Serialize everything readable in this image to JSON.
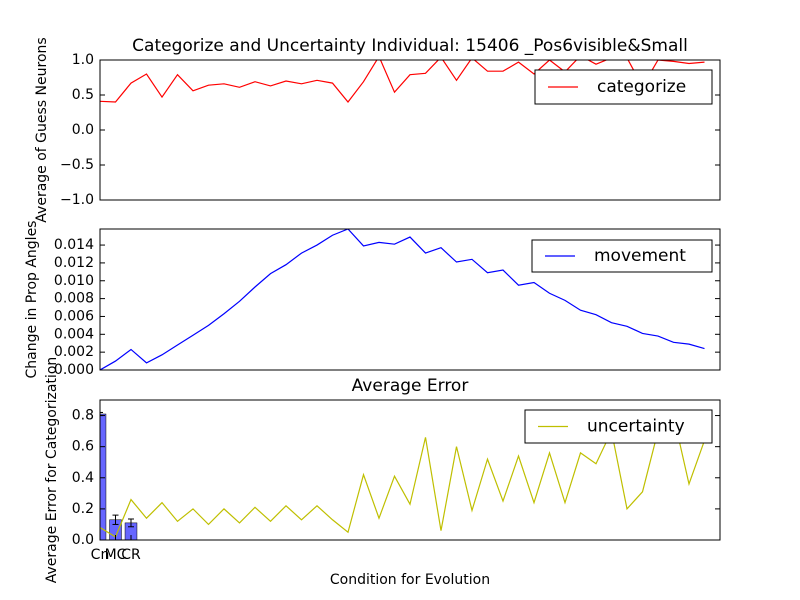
{
  "chart_data": [
    {
      "type": "line",
      "title": "Categorize and Uncertainty Individual: 15406 _Pos6visible&Small",
      "y_label": "Average of Guess Neurons",
      "xlim": [
        0,
        40
      ],
      "ylim": [
        -1,
        1
      ],
      "yticks": [
        {
          "value": -1,
          "label": "−1.0"
        },
        {
          "value": -0.5,
          "label": "−0.5"
        },
        {
          "value": 0,
          "label": "0.0"
        },
        {
          "value": 0.5,
          "label": "0.5"
        },
        {
          "value": 1,
          "label": "1.0"
        }
      ],
      "legend": "upper right",
      "series": [
        {
          "name": "categorize",
          "color": "#ff0000",
          "x": [
            0,
            1,
            2,
            3,
            4,
            5,
            6,
            7,
            8,
            9,
            10,
            11,
            12,
            13,
            14,
            15,
            16,
            17,
            18,
            19,
            20,
            21,
            22,
            23,
            24,
            25,
            26,
            27,
            28,
            29,
            30,
            31,
            32,
            33,
            34,
            35,
            36,
            37,
            38,
            39
          ],
          "values": [
            0.41,
            0.4,
            0.67,
            0.8,
            0.47,
            0.79,
            0.56,
            0.64,
            0.66,
            0.61,
            0.69,
            0.63,
            0.7,
            0.66,
            0.71,
            0.67,
            0.4,
            0.69,
            1.05,
            0.54,
            0.79,
            0.81,
            1.04,
            0.71,
            1.03,
            0.84,
            0.84,
            0.97,
            0.8,
            1.0,
            0.83,
            1.06,
            0.94,
            1.03,
            1.03,
            0.62,
            1.0,
            0.98,
            0.95,
            0.97
          ]
        }
      ]
    },
    {
      "type": "line",
      "y_label": "Change in Prop Angles",
      "xlim": [
        0,
        40
      ],
      "ylim": [
        0,
        0.0158
      ],
      "yticks": [
        {
          "value": 0,
          "label": "0.000"
        },
        {
          "value": 0.002,
          "label": "0.002"
        },
        {
          "value": 0.004,
          "label": "0.004"
        },
        {
          "value": 0.006,
          "label": "0.006"
        },
        {
          "value": 0.008,
          "label": "0.008"
        },
        {
          "value": 0.01,
          "label": "0.010"
        },
        {
          "value": 0.012,
          "label": "0.012"
        },
        {
          "value": 0.014,
          "label": "0.014"
        }
      ],
      "legend": "upper right",
      "series": [
        {
          "name": "movement",
          "color": "#0000ff",
          "x": [
            0,
            1,
            2,
            3,
            4,
            5,
            6,
            7,
            8,
            9,
            10,
            11,
            12,
            13,
            14,
            15,
            16,
            17,
            18,
            19,
            20,
            21,
            22,
            23,
            24,
            25,
            26,
            27,
            28,
            29,
            30,
            31,
            32,
            33,
            34,
            35,
            36,
            37,
            38,
            39
          ],
          "values": [
            0,
            0.001,
            0.0023,
            0.0008,
            0.0017,
            0.0028,
            0.0039,
            0.005,
            0.0063,
            0.0077,
            0.0093,
            0.0108,
            0.0118,
            0.0131,
            0.014,
            0.0151,
            0.0158,
            0.0139,
            0.0143,
            0.0141,
            0.0149,
            0.0131,
            0.0137,
            0.0121,
            0.0124,
            0.0109,
            0.0112,
            0.0095,
            0.0098,
            0.0086,
            0.0078,
            0.0067,
            0.0062,
            0.0053,
            0.0049,
            0.0041,
            0.0038,
            0.0031,
            0.0029,
            0.0024
          ]
        }
      ]
    },
    {
      "type": "bar-line",
      "title": "Average Error",
      "y_label": "Average Error for Categorization",
      "x_label": "Condition for Evolution",
      "xlim": [
        0,
        40
      ],
      "ylim": [
        0,
        0.9
      ],
      "yticks": [
        {
          "value": 0,
          "label": "0.0"
        },
        {
          "value": 0.2,
          "label": "0.2"
        },
        {
          "value": 0.4,
          "label": "0.4"
        },
        {
          "value": 0.6,
          "label": "0.6"
        },
        {
          "value": 0.8,
          "label": "0.8"
        }
      ],
      "legend": "upper right",
      "bars": {
        "categories": [
          "Cn",
          "MC",
          "CR"
        ],
        "x": [
          0,
          1,
          2
        ],
        "values": [
          0.81,
          0.13,
          0.11
        ],
        "errors": [
          0.01,
          0.03,
          0.025
        ],
        "color": "#0000ff"
      },
      "series": [
        {
          "name": "uncertainty",
          "color": "#bfbf00",
          "x": [
            0,
            1,
            2,
            3,
            4,
            5,
            6,
            7,
            8,
            9,
            10,
            11,
            12,
            13,
            14,
            15,
            16,
            17,
            18,
            19,
            20,
            21,
            22,
            23,
            24,
            25,
            26,
            27,
            28,
            29,
            30,
            31,
            32,
            33,
            34,
            35,
            36,
            37,
            38,
            39
          ],
          "values": [
            0.08,
            0.02,
            0.26,
            0.14,
            0.24,
            0.12,
            0.2,
            0.1,
            0.2,
            0.11,
            0.21,
            0.12,
            0.22,
            0.13,
            0.22,
            0.13,
            0.05,
            0.42,
            0.14,
            0.41,
            0.23,
            0.66,
            0.06,
            0.6,
            0.19,
            0.52,
            0.25,
            0.54,
            0.24,
            0.56,
            0.24,
            0.56,
            0.49,
            0.7,
            0.2,
            0.31,
            0.7,
            0.8,
            0.36,
            0.64
          ]
        }
      ]
    }
  ]
}
